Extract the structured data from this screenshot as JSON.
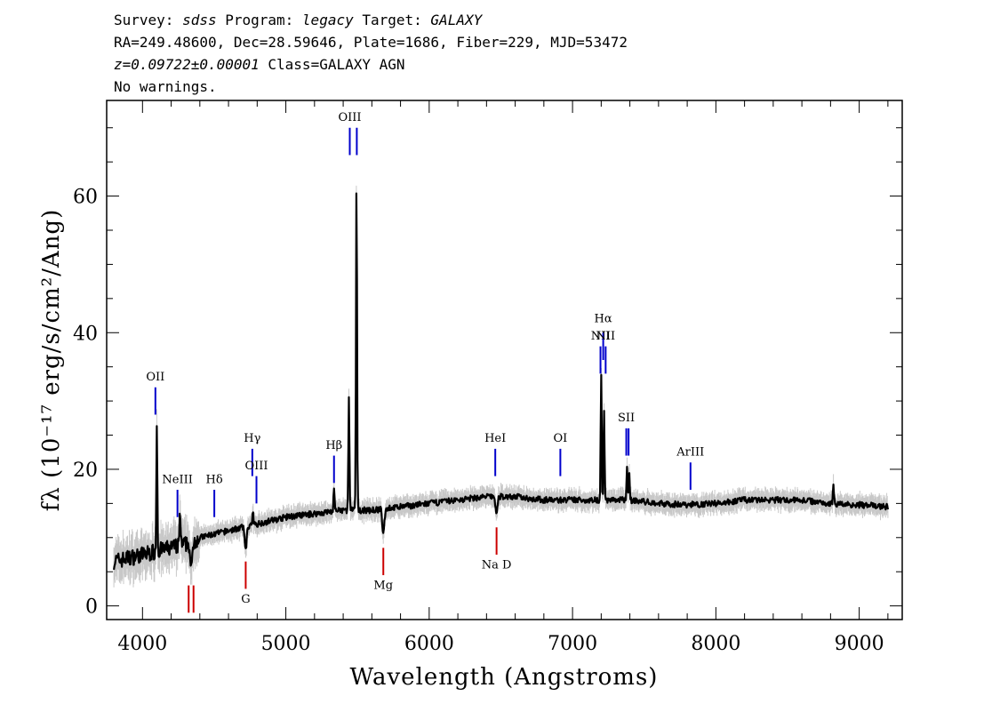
{
  "header": {
    "line1": {
      "survey_label": "Survey: ",
      "survey": "sdss",
      "program_label": " Program: ",
      "program": "legacy",
      "target_label": " Target: ",
      "target": "GALAXY"
    },
    "line2": "RA=249.48600, Dec=28.59646, Plate=1686, Fiber=229, MJD=53472",
    "line3": {
      "redshift": "z=0.09722±0.00001",
      "class": " Class=GALAXY AGN"
    },
    "line4": "No warnings."
  },
  "chart_data": {
    "type": "line",
    "title": "",
    "xlabel": "Wavelength (Angstroms)",
    "ylabel": "fλ (10⁻¹⁷ erg/s/cm²/Ang)",
    "xlim": [
      3750,
      9300
    ],
    "ylim": [
      -2,
      74
    ],
    "x_ticks": [
      4000,
      5000,
      6000,
      7000,
      8000,
      9000
    ],
    "x_tick_labels": [
      "4000",
      "5000",
      "6000",
      "7000",
      "8000",
      "9000"
    ],
    "y_ticks": [
      0,
      20,
      40,
      60
    ],
    "y_tick_labels": [
      "0",
      "20",
      "40",
      "60"
    ],
    "continuum": {
      "x": [
        3800,
        4000,
        4200,
        4300,
        4400,
        4600,
        4800,
        5000,
        5200,
        5400,
        5600,
        5800,
        6000,
        6200,
        6400,
        6600,
        6800,
        7000,
        7400,
        7600,
        7800,
        8000,
        8200,
        8400,
        8600,
        8800,
        9000,
        9200
      ],
      "y": [
        6.5,
        7.5,
        8.5,
        9.0,
        10.0,
        11.0,
        12.0,
        13.0,
        13.5,
        14.0,
        14.0,
        14.5,
        15.0,
        15.5,
        16.0,
        16.0,
        15.5,
        15.5,
        15.5,
        15.0,
        14.8,
        15.0,
        15.5,
        15.5,
        15.5,
        15.0,
        14.8,
        14.5
      ]
    },
    "emission_peaks": [
      {
        "x": 4100,
        "y": 26.5
      },
      {
        "x": 4262,
        "y": 14.0
      },
      {
        "x": 4770,
        "y": 13.5
      },
      {
        "x": 5336,
        "y": 17.5
      },
      {
        "x": 5440,
        "y": 30.5
      },
      {
        "x": 5493,
        "y": 62.5
      },
      {
        "x": 7200,
        "y": 34.0
      },
      {
        "x": 7220,
        "y": 28.5
      },
      {
        "x": 7380,
        "y": 20.5
      },
      {
        "x": 7395,
        "y": 20.0
      },
      {
        "x": 8820,
        "y": 18.0
      }
    ],
    "absorption_dips": [
      {
        "x": 4340,
        "y": 5.0
      },
      {
        "x": 4720,
        "y": 8.5
      },
      {
        "x": 5680,
        "y": 10.5
      },
      {
        "x": 6470,
        "y": 13.5
      }
    ],
    "emission_lines": [
      {
        "label": "OII",
        "x": 4090,
        "y_lo": 28.0,
        "y_hi": 32.0,
        "label_y": 33.0
      },
      {
        "label": "NeIII",
        "x": 4244,
        "y_lo": 13.0,
        "y_hi": 17.0,
        "label_y": 18.0
      },
      {
        "label": "Hδ",
        "x": 4501,
        "y_lo": 13.0,
        "y_hi": 17.0,
        "label_y": 18.0
      },
      {
        "label": "Hγ",
        "x": 4766,
        "y_lo": 19.0,
        "y_hi": 23.0,
        "label_y": 24.0
      },
      {
        "label": "OIII",
        "x": 4795,
        "y_lo": 15.0,
        "y_hi": 19.0,
        "label_y": 20.0
      },
      {
        "label": "Hβ",
        "x": 5336,
        "y_lo": 18.0,
        "y_hi": 22.0,
        "label_y": 23.0
      },
      {
        "label": "OIII",
        "x": 5446,
        "y_lo": 66.0,
        "y_hi": 70.0,
        "label_y": 71.0
      },
      {
        "label": "",
        "x": 5495,
        "y_lo": 66.0,
        "y_hi": 70.0,
        "label_y": 71.0
      },
      {
        "label": "HeI",
        "x": 6461,
        "y_lo": 19.0,
        "y_hi": 23.0,
        "label_y": 24.0
      },
      {
        "label": "OI",
        "x": 6915,
        "y_lo": 19.0,
        "y_hi": 23.0,
        "label_y": 24.0
      },
      {
        "label": "NII",
        "x": 7195,
        "y_lo": 34.0,
        "y_hi": 38.0,
        "label_y": 39.0
      },
      {
        "label": "Hα",
        "x": 7214,
        "y_lo": 36.0,
        "y_hi": 40.0,
        "label_y": 41.5
      },
      {
        "label": "NII",
        "x": 7231,
        "y_lo": 34.0,
        "y_hi": 38.0,
        "label_y": 39.0
      },
      {
        "label": "SII",
        "x": 7375,
        "y_lo": 22.0,
        "y_hi": 26.0,
        "label_y": 27.0
      },
      {
        "label": "",
        "x": 7391,
        "y_lo": 22.0,
        "y_hi": 26.0,
        "label_y": 27.0
      },
      {
        "label": "ArIII",
        "x": 7823,
        "y_lo": 17.0,
        "y_hi": 21.0,
        "label_y": 22.0
      }
    ],
    "absorption_lines": [
      {
        "label": "",
        "x": 4322,
        "y_lo": -1.0,
        "y_hi": 3.0,
        "label_y": -4
      },
      {
        "label": "",
        "x": 4356,
        "y_lo": -1.0,
        "y_hi": 3.0,
        "label_y": -4
      },
      {
        "label": "G",
        "x": 4720,
        "y_lo": 2.5,
        "y_hi": 6.5,
        "label_y": 0.5
      },
      {
        "label": "Mg",
        "x": 5680,
        "y_lo": 4.5,
        "y_hi": 8.5,
        "label_y": 2.5
      },
      {
        "label": "Na D",
        "x": 6470,
        "y_lo": 7.5,
        "y_hi": 11.5,
        "label_y": 5.5
      }
    ],
    "colors": {
      "flux": "#000000",
      "error": "#c8c8c8",
      "emission": "#0000cc",
      "absorption": "#cc0000"
    }
  }
}
